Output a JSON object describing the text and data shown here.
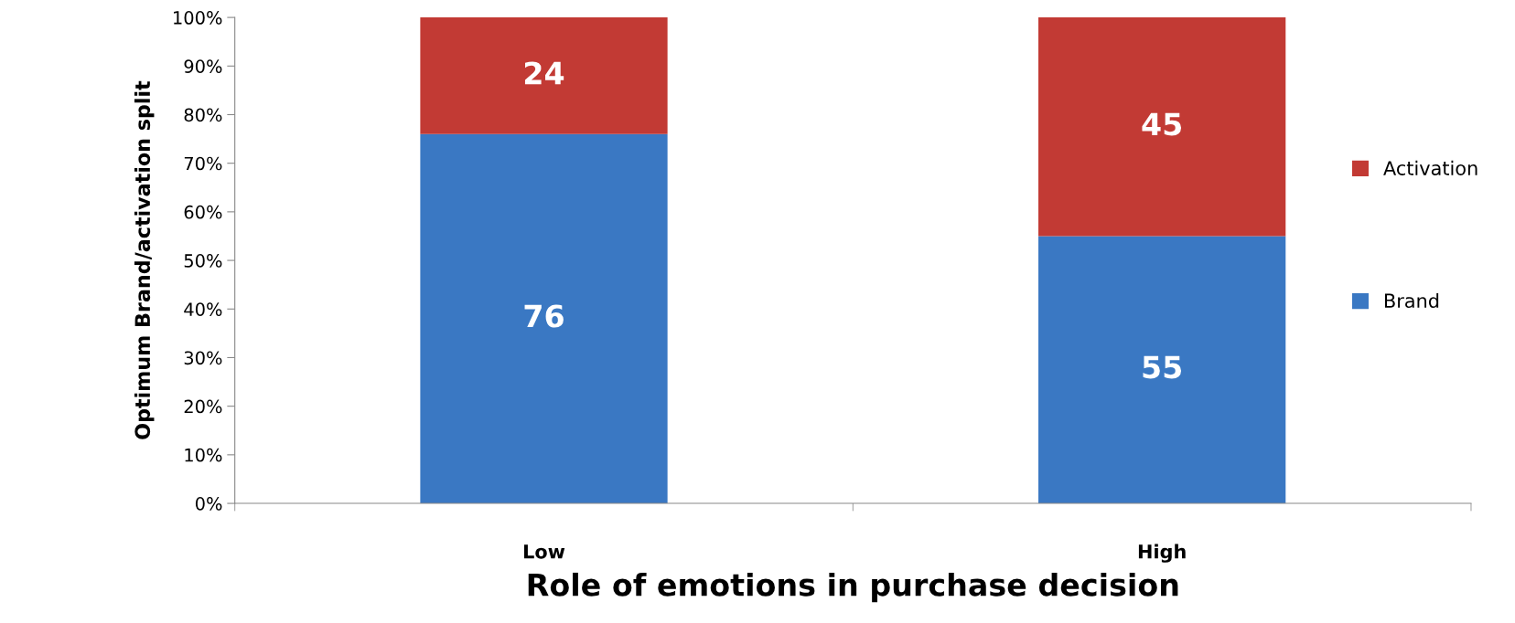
{
  "chart_data": {
    "type": "bar",
    "stacked": true,
    "xlabel": "Role of emotions in purchase decision",
    "ylabel": "Optimum Brand/activation split",
    "categories": [
      "Low",
      "High"
    ],
    "series": [
      {
        "name": "Brand",
        "color": "#3a78c3",
        "values": [
          76,
          55
        ]
      },
      {
        "name": "Activation",
        "color": "#c23a34",
        "values": [
          24,
          45
        ]
      }
    ],
    "ylim": [
      0,
      100
    ],
    "yticks": [
      {
        "value": 0,
        "label": "0%"
      },
      {
        "value": 10,
        "label": "10%"
      },
      {
        "value": 20,
        "label": "20%"
      },
      {
        "value": 30,
        "label": "30%"
      },
      {
        "value": 40,
        "label": "40%"
      },
      {
        "value": 50,
        "label": "50%"
      },
      {
        "value": 60,
        "label": "60%"
      },
      {
        "value": 70,
        "label": "70%"
      },
      {
        "value": 80,
        "label": "80%"
      },
      {
        "value": 90,
        "label": "90%"
      },
      {
        "value": 100,
        "label": "100%"
      }
    ],
    "data_labels": true,
    "legend": "right",
    "grid": false
  }
}
